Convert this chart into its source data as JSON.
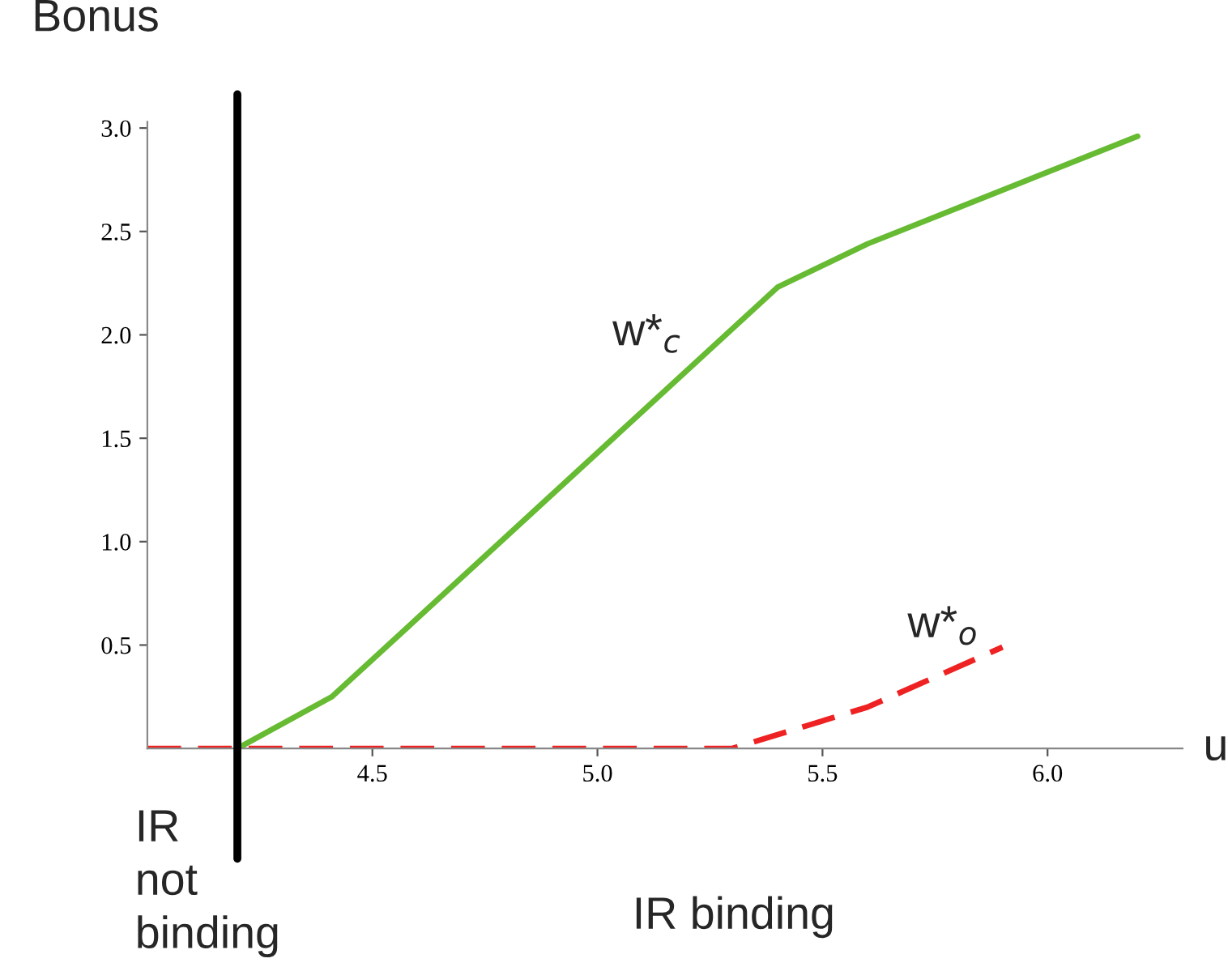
{
  "chart_data": {
    "type": "line",
    "xlabel": "u",
    "ylabel": "Bonus",
    "xlim": [
      4.0,
      6.3
    ],
    "ylim": [
      0,
      3.03
    ],
    "xticks": [
      4.5,
      {
        "value": 5,
        "label": "5.0"
      },
      5.5,
      {
        "value": 6,
        "label": "6.0"
      }
    ],
    "yticks": [
      0.5,
      {
        "value": 1,
        "label": "1.0"
      },
      1.5,
      {
        "value": 2,
        "label": "2.0"
      },
      2.5,
      {
        "value": 3,
        "label": "3.0"
      }
    ],
    "grid": false,
    "legend": false,
    "series": [
      {
        "x": [
          4.2,
          4.41,
          5.4,
          5.6,
          6.2
        ],
        "values": [
          0,
          0.25,
          2.23,
          2.44,
          2.96
        ],
        "color": "#66bb33",
        "line_style": "solid"
      },
      {
        "x": [
          4.0,
          5.3,
          5.6,
          5.9
        ],
        "values": [
          0,
          0,
          0.2,
          0.49
        ],
        "color": "#ee2222",
        "line_style": "dashed"
      }
    ],
    "ref_lines": [
      {
        "axis": "x",
        "value": 4.2,
        "color": "#000000"
      }
    ],
    "annotations": [
      "w*$_{c}$",
      "w*$_{o}$",
      "IR\nnot\nbinding",
      "IR binding"
    ]
  }
}
